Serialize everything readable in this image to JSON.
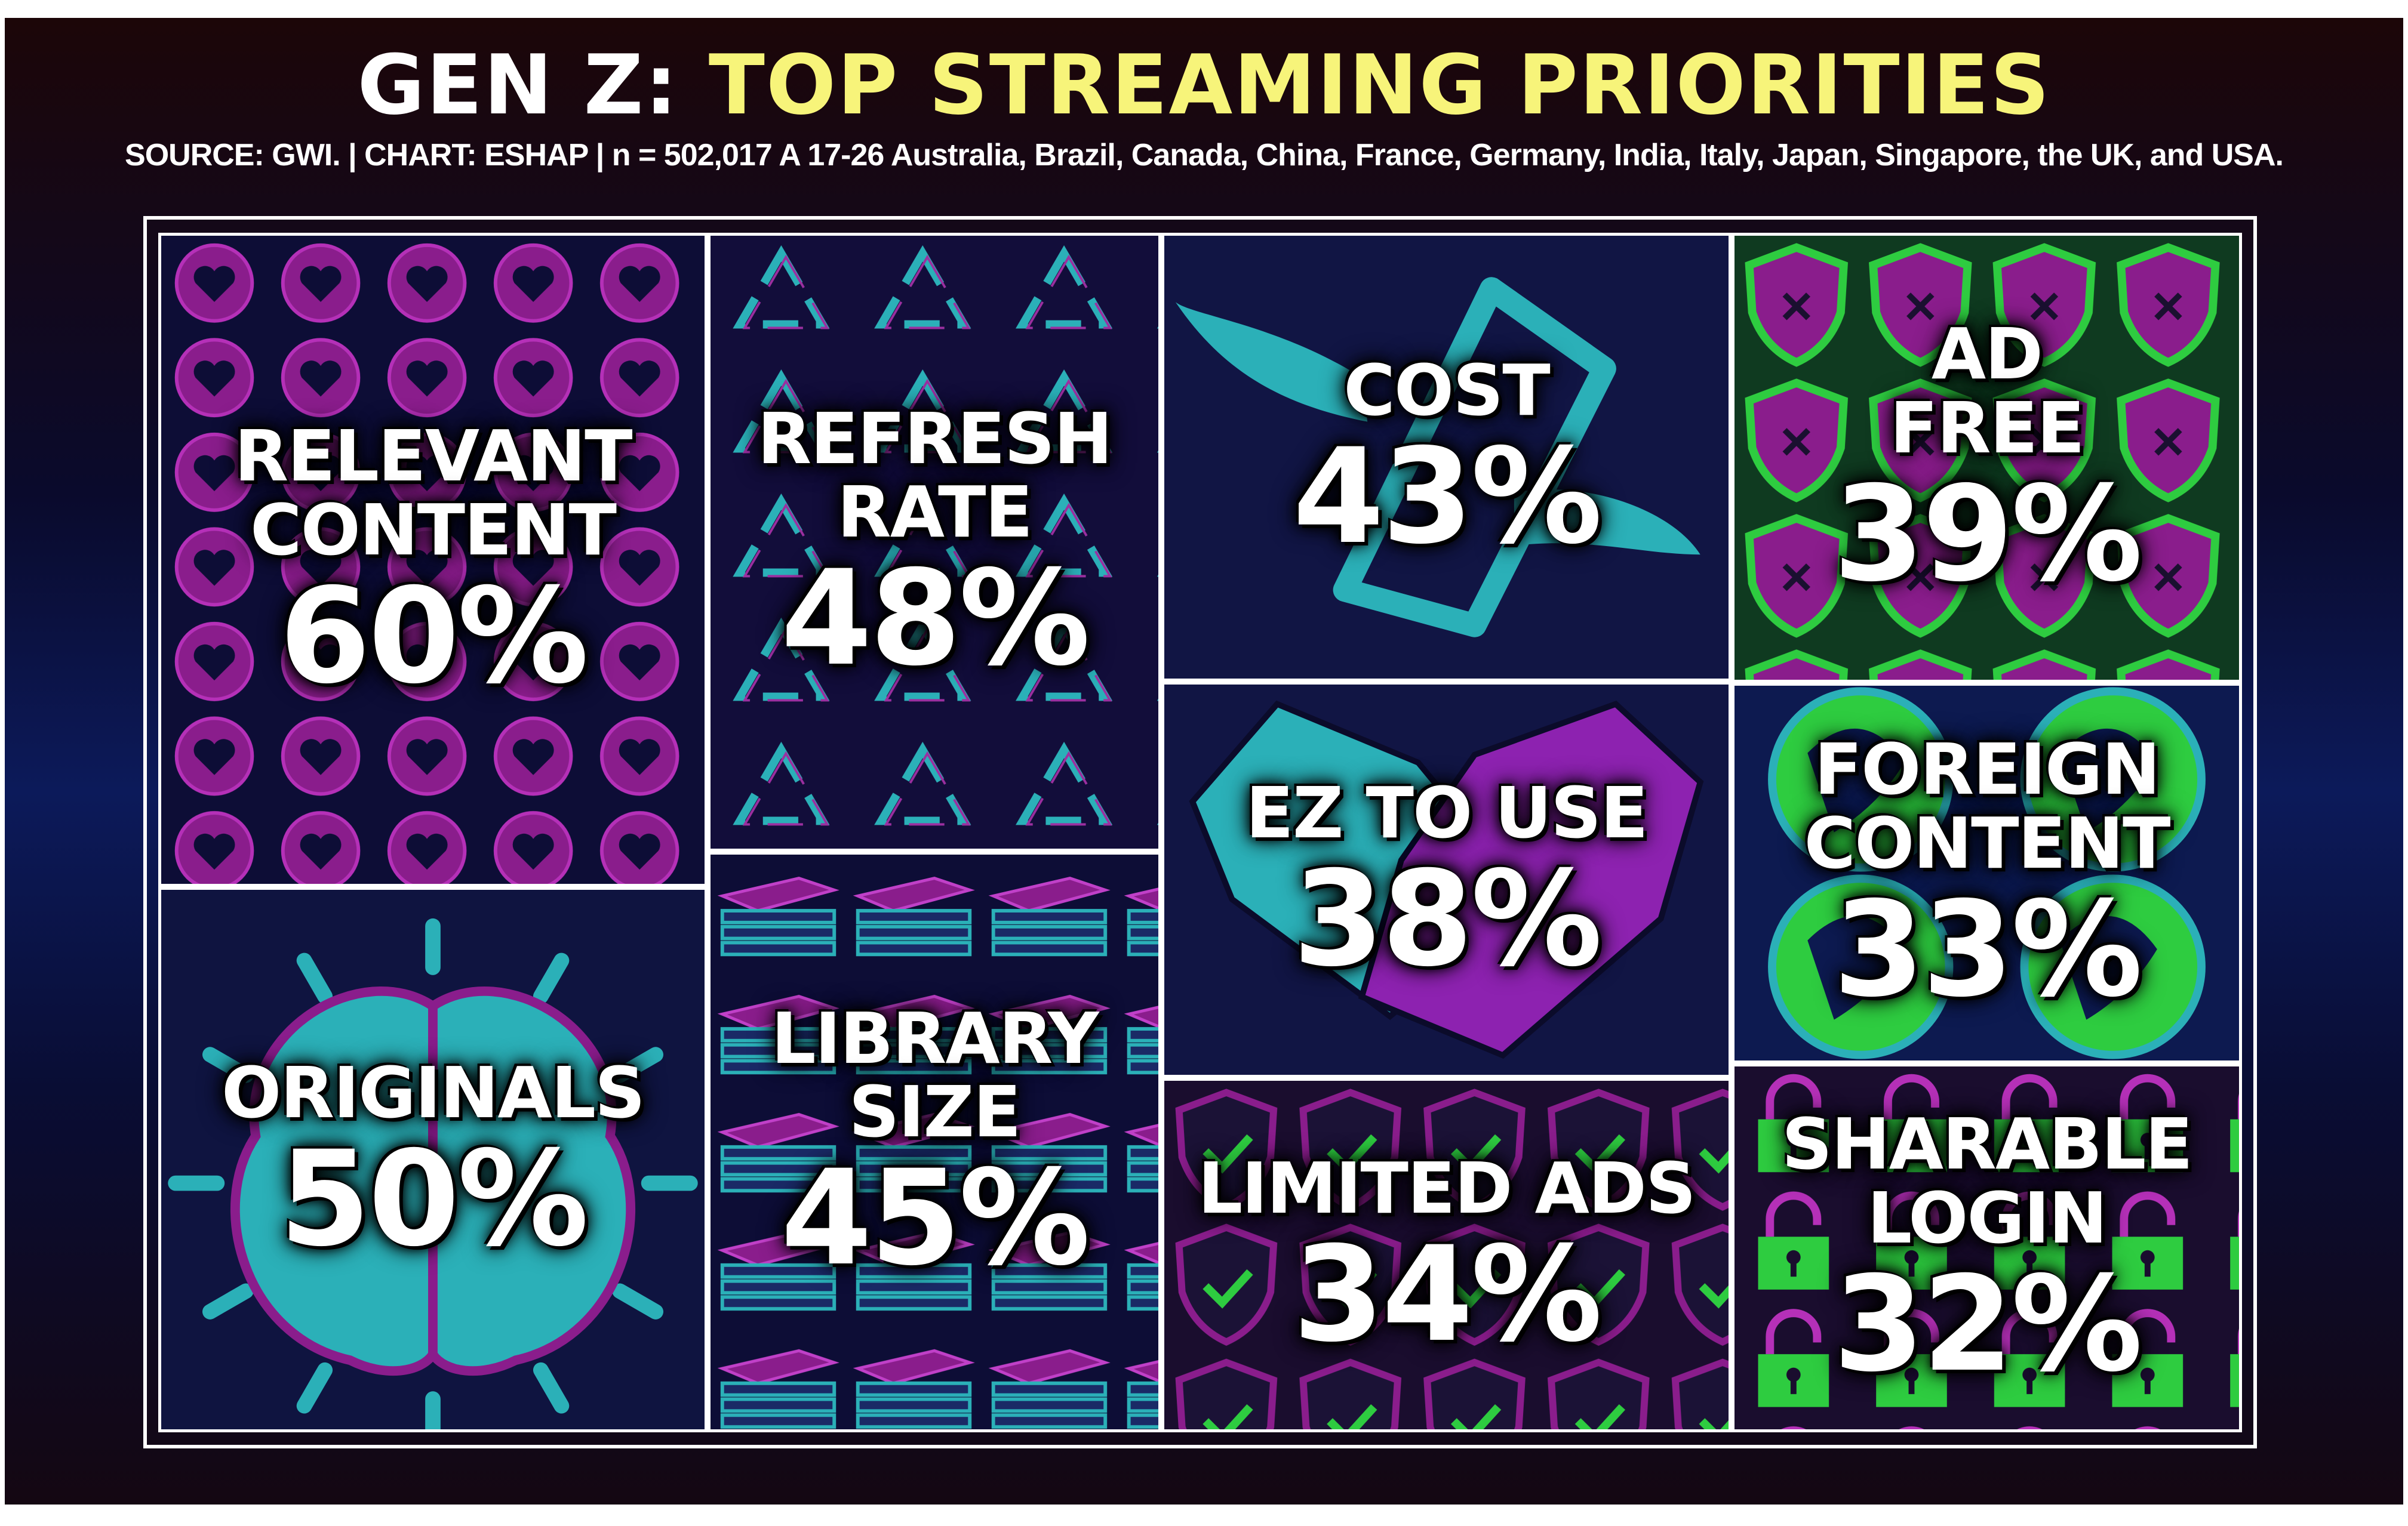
{
  "title": {
    "part1": "GEN Z:",
    "part2": "TOP STREAMING PRIORITIES"
  },
  "subtitle": "SOURCE: GWI. | CHART: ESHAP | n = 502,017 A 17-26 Australia, Brazil, Canada, China, France, Germany, India, Italy, Japan, Singapore, the UK, and USA.",
  "colors": {
    "title_white": "#ffffff",
    "title_yellow": "#f7f47a",
    "magenta": "#8a1d8c",
    "teal": "#2bb0b8",
    "green": "#2ecc40",
    "navy": "#0d0d36"
  },
  "chart_data": {
    "type": "treemap",
    "unit": "%",
    "items": [
      {
        "name": "RELEVANT CONTENT",
        "line1": "RELEVANT",
        "line2": "CONTENT",
        "value": 60,
        "label": "60%",
        "icon": "heart-icon"
      },
      {
        "name": "ORIGINALS",
        "line1": "ORIGINALS",
        "line2": "",
        "value": 50,
        "label": "50%",
        "icon": "brain-icon"
      },
      {
        "name": "REFRESH RATE",
        "line1": "REFRESH",
        "line2": "RATE",
        "value": 48,
        "label": "48%",
        "icon": "recycle-icon"
      },
      {
        "name": "LIBRARY SIZE",
        "line1": "LIBRARY",
        "line2": "SIZE",
        "value": 45,
        "label": "45%",
        "icon": "book-stack-icon"
      },
      {
        "name": "COST",
        "line1": "COST",
        "line2": "",
        "value": 43,
        "label": "43%",
        "icon": "flying-money-icon"
      },
      {
        "name": "AD FREE",
        "line1": "AD",
        "line2": "FREE",
        "value": 39,
        "label": "39%",
        "icon": "shield-x-icon"
      },
      {
        "name": "EZ TO USE",
        "line1": "EZ TO USE",
        "line2": "",
        "value": 38,
        "label": "38%",
        "icon": "handshake-icon"
      },
      {
        "name": "LIMITED ADS",
        "line1": "LIMITED ADS",
        "line2": "",
        "value": 34,
        "label": "34%",
        "icon": "shield-check-icon"
      },
      {
        "name": "FOREIGN CONTENT",
        "line1": "FOREIGN",
        "line2": "CONTENT",
        "value": 33,
        "label": "33%",
        "icon": "globe-icon"
      },
      {
        "name": "SHARABLE LOGIN",
        "line1": "SHARABLE",
        "line2": "LOGIN",
        "value": 32,
        "label": "32%",
        "icon": "padlock-icon"
      }
    ]
  }
}
